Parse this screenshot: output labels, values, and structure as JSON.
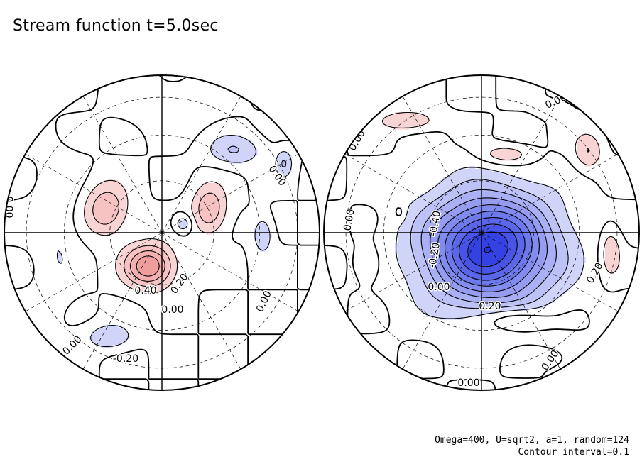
{
  "title": "Stream function t=5.0sec",
  "footer": {
    "params": "Omega=400, U=sqrt2, a=1, random=124",
    "contour_interval": "Contour interval=0.1"
  },
  "colors": {
    "positive": "#e03030",
    "negative": "#2030e0",
    "zero": "#ffffff",
    "line": "#000000"
  },
  "chart_data": {
    "type": "contour",
    "projection": "polar stereographic, two hemispheres",
    "contour_interval": 0.1,
    "grid": true,
    "panels": [
      {
        "name": "left hemisphere",
        "features": [
          {
            "sign": "positive",
            "peak": 0.5
          },
          {
            "sign": "positive",
            "peak": 0.3
          },
          {
            "sign": "positive",
            "peak": 0.3
          },
          {
            "sign": "negative",
            "peak": -0.2
          },
          {
            "sign": "negative",
            "peak": -0.2
          },
          {
            "sign": "negative",
            "peak": -0.2
          },
          {
            "sign": "negative",
            "peak": -0.2
          },
          {
            "sign": "negative",
            "peak": -0.2
          },
          {
            "sign": "positive",
            "peak": 0.1
          },
          {
            "sign": "negative",
            "peak": -0.1
          }
        ],
        "contour_labels": [
          {
            "text": "0.40"
          },
          {
            "text": "0.20"
          },
          {
            "text": "0.00"
          },
          {
            "text": "0.00"
          },
          {
            "text": "0.00"
          },
          {
            "text": "0.00"
          },
          {
            "text": "-0.20"
          },
          {
            "text": "0.00"
          }
        ]
      },
      {
        "name": "right hemisphere",
        "features": [
          {
            "sign": "negative",
            "peak": -1.0
          },
          {
            "sign": "positive",
            "peak": 0.2
          },
          {
            "sign": "positive",
            "peak": 0.2
          },
          {
            "sign": "positive",
            "peak": 0.2
          },
          {
            "sign": "positive",
            "peak": 0.1
          },
          {
            "sign": "positive",
            "peak": 0.2
          },
          {
            "sign": "positive",
            "peak": 0.1
          },
          {
            "sign": "positive",
            "peak": 0.1
          },
          {
            "sign": "positive",
            "peak": 0.2
          },
          {
            "sign": "positive",
            "peak": 0.1
          }
        ],
        "contour_labels": [
          {
            "text": "0.00"
          },
          {
            "text": "0.00"
          },
          {
            "text": "0.00"
          },
          {
            "text": "-0.40"
          },
          {
            "text": "-0.20"
          },
          {
            "text": "0.00"
          },
          {
            "text": "0.20"
          },
          {
            "text": "0.20"
          },
          {
            "text": "0.00"
          },
          {
            "text": "0.00"
          }
        ]
      }
    ]
  }
}
